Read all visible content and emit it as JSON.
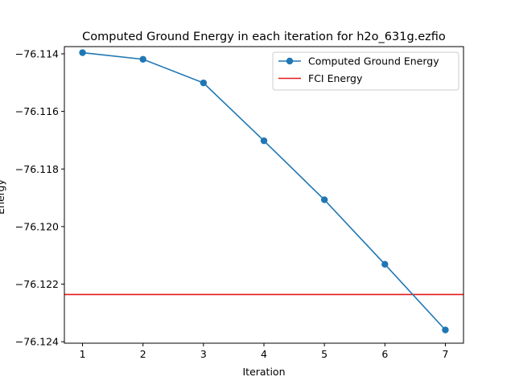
{
  "chart_data": {
    "type": "line",
    "title": "Computed Ground Energy in each iteration for h2o_631g.ezfio",
    "xlabel": "Iteration",
    "ylabel": "Energy",
    "xlim": [
      0.7,
      7.3
    ],
    "ylim": [
      -76.12405,
      -76.11375
    ],
    "x_ticks": [
      1,
      2,
      3,
      4,
      5,
      6,
      7
    ],
    "x_tick_labels": [
      "1",
      "2",
      "3",
      "4",
      "5",
      "6",
      "7"
    ],
    "y_ticks": [
      -76.114,
      -76.116,
      -76.118,
      -76.12,
      -76.122,
      -76.124
    ],
    "y_tick_labels": [
      "−76.114",
      "−76.116",
      "−76.118",
      "−76.120",
      "−76.122",
      "−76.124"
    ],
    "series": [
      {
        "name": "Computed Ground Energy",
        "color": "#1f77b4",
        "marker": "circle",
        "x": [
          1,
          2,
          3,
          4,
          5,
          6,
          7
        ],
        "y": [
          -76.11396,
          -76.11419,
          -76.11501,
          -76.11702,
          -76.11907,
          -76.12131,
          -76.12359
        ]
      }
    ],
    "hlines": [
      {
        "name": "FCI Energy",
        "color": "#e41a1c",
        "y": -76.12236
      }
    ],
    "grid": false,
    "legend": "top-right"
  }
}
